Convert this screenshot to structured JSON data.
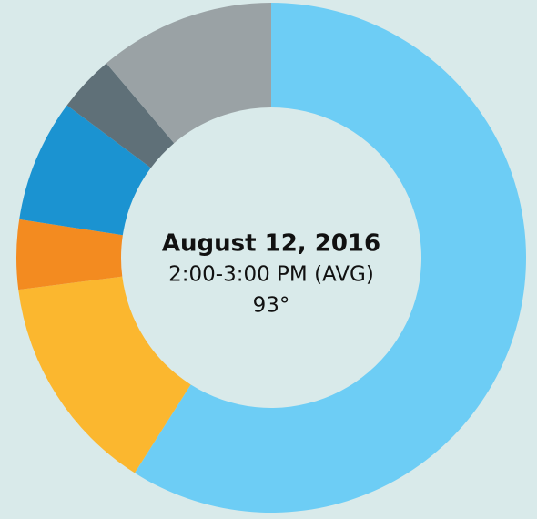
{
  "chart_data": {
    "type": "donut",
    "values": [
      59,
      14,
      4.4,
      7.8,
      3.6,
      11.2
    ],
    "colors": [
      "#6dcdf5",
      "#fbb72f",
      "#f38b20",
      "#1b93d1",
      "#5f7078",
      "#9aa2a5"
    ],
    "center_text": [
      "August 12, 2016",
      "2:00-3:00 PM (AVG)",
      "93°"
    ]
  }
}
